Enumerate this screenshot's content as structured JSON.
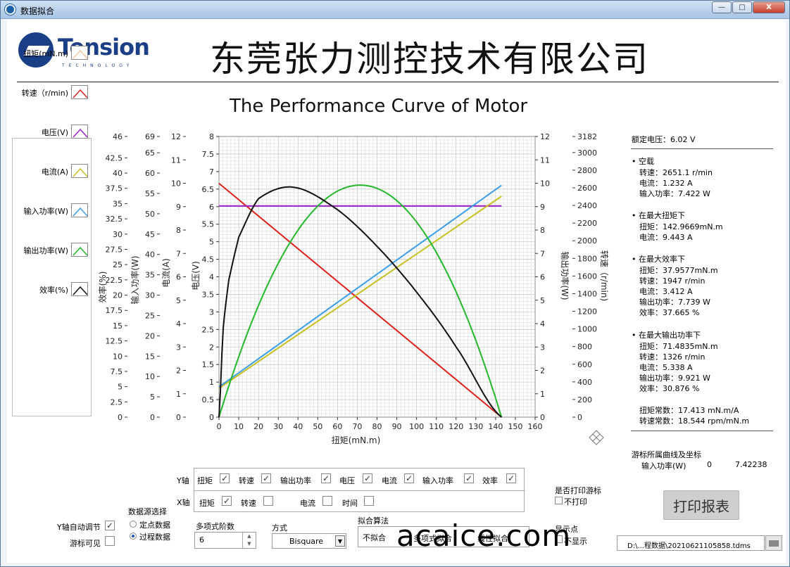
{
  "window": {
    "title": "数据拟合",
    "min": "—",
    "max": "□",
    "close": "X"
  },
  "header": {
    "logo_text": "Tension",
    "logo_sub": "TECHNOLOGY",
    "company": "东莞张力测控技术有限公司"
  },
  "colors": {
    "torque": "#f5c8a8",
    "speed": "#e0201a",
    "voltage": "#a020c8",
    "current": "#c8c020",
    "input_power": "#3a9ee8",
    "output_power": "#22b82a",
    "efficiency": "#111111"
  },
  "chart_data": {
    "type": "line",
    "title": "The Performance Curve of Motor",
    "xlabel": "扭矩(mN.m)",
    "xlim": [
      0,
      160
    ],
    "x_ticks": [
      "0",
      "10",
      "20",
      "30",
      "40",
      "50",
      "60",
      "70",
      "80",
      "90",
      "100",
      "110",
      "120",
      "130",
      "140",
      "150",
      "160"
    ],
    "axes": [
      {
        "name": "效率(%)",
        "side": "left",
        "lim": [
          0,
          46
        ],
        "ticks": [
          "46",
          "42.5",
          "40",
          "37.5",
          "35",
          "32.5",
          "30",
          "27.5",
          "25",
          "22.5",
          "20",
          "17.5",
          "15",
          "12.5",
          "10",
          "7.5",
          "5",
          "2.5",
          "0"
        ]
      },
      {
        "name": "输入功率(W)",
        "side": "left",
        "lim": [
          0,
          69
        ],
        "ticks": [
          "69",
          "65",
          "60",
          "55",
          "50",
          "45",
          "40",
          "35",
          "30",
          "25",
          "20",
          "15",
          "10",
          "5",
          "0"
        ]
      },
      {
        "name": "电流(A)",
        "side": "left",
        "lim": [
          0,
          12
        ],
        "ticks": [
          "12",
          "11",
          "10",
          "9",
          "8",
          "7",
          "6",
          "5",
          "4",
          "3",
          "2",
          "1",
          "0"
        ]
      },
      {
        "name": "电压(V)",
        "side": "left",
        "lim": [
          0,
          8
        ],
        "ticks": [
          "8",
          "7.5",
          "7",
          "6.5",
          "6",
          "5.5",
          "5",
          "4.5",
          "4",
          "3.5",
          "3",
          "2.5",
          "2",
          "1.5",
          "1",
          "0.5",
          "0"
        ]
      },
      {
        "name": "输出功率(W)",
        "side": "right",
        "lim": [
          0,
          12
        ],
        "ticks": [
          "12",
          "11",
          "10",
          "9",
          "8",
          "7",
          "6",
          "5",
          "4",
          "3",
          "2",
          "1",
          "0"
        ]
      },
      {
        "name": "转速（r/min)",
        "side": "right",
        "lim": [
          0,
          3182
        ],
        "ticks": [
          "3182",
          "3000",
          "2800",
          "2600",
          "2400",
          "2200",
          "2000",
          "1800",
          "1600",
          "1400",
          "1200",
          "1000",
          "800",
          "600",
          "400",
          "200",
          "0"
        ]
      }
    ],
    "series": [
      {
        "name": "转速（r/min)",
        "axis": "转速（r/min)",
        "x": [
          0,
          143
        ],
        "y": [
          2651.1,
          0
        ]
      },
      {
        "name": "电压(V)",
        "axis": "电压(V)",
        "x": [
          0,
          143
        ],
        "y": [
          6.02,
          6.02
        ]
      },
      {
        "name": "电流(A)",
        "axis": "电流(A)",
        "x": [
          0,
          143
        ],
        "y": [
          1.232,
          9.443
        ]
      },
      {
        "name": "输入功率(W)",
        "axis": "输入功率(W)",
        "x": [
          0,
          143
        ],
        "y": [
          7.42,
          57.0
        ]
      },
      {
        "name": "输出功率(W)",
        "axis": "输出功率(W)",
        "x": [
          0,
          71.48,
          143
        ],
        "y": [
          0,
          9.921,
          0
        ]
      },
      {
        "name": "效率(%)",
        "axis": "效率(%)",
        "x": [
          0,
          2,
          5,
          10,
          20,
          37.96,
          60,
          80,
          100,
          120,
          143
        ],
        "y": [
          0,
          14.0,
          22.5,
          29.5,
          35.8,
          37.665,
          34.0,
          28.0,
          20.5,
          11.5,
          0
        ]
      }
    ]
  },
  "legend": [
    {
      "label": "扭矩(mN.m)",
      "key": "torque"
    },
    {
      "label": "转速（r/min)",
      "key": "speed"
    },
    {
      "label": "电压(V)",
      "key": "voltage"
    },
    {
      "label": "电流(A)",
      "key": "current"
    },
    {
      "label": "输入功率(W)",
      "key": "input_power"
    },
    {
      "label": "输出功率(W)",
      "key": "output_power"
    },
    {
      "label": "效率(%)",
      "key": "efficiency"
    }
  ],
  "info": {
    "rated_voltage": "额定电压：6.02 V",
    "no_load": {
      "head": "• 空载",
      "l1": "转速：2651.1 r/min",
      "l2": "电流：1.232 A",
      "l3": "输入功率：7.422 W"
    },
    "max_torque": {
      "head": "• 在最大扭矩下",
      "l1": "扭矩：142.9669mN.m",
      "l2": "电流：9.443 A"
    },
    "max_eff": {
      "head": "• 在最大效率下",
      "l1": "扭矩：37.9577mN.m",
      "l2": "转速：1947  r/min",
      "l3": "电流：3.412 A",
      "l4": "输出功率：7.739 W",
      "l5": "效率：37.665 %"
    },
    "max_out": {
      "head": "• 在最大输出功率下",
      "l1": "扭矩：71.4835mN.m",
      "l2": "转速：1326  r/min",
      "l3": "电流：5.338 A",
      "l4": "输出功率：9.921 W",
      "l5": "效率：30.876 %"
    },
    "kt": "扭矩常数：17.413 mN.m/A",
    "kn": "转速常数：18.544 rpm/mN.m"
  },
  "cursor": {
    "title": "游标所属曲线及坐标",
    "curve": "输入功率(W)",
    "x": "0",
    "y": "7.42238"
  },
  "axis_select": {
    "y_label": "Y轴",
    "x_label": "X轴",
    "y_items": [
      {
        "label": "扭矩",
        "checked": "✓"
      },
      {
        "label": "转速",
        "checked": "✓"
      },
      {
        "label": "输出功率",
        "checked": "✓"
      },
      {
        "label": "电压",
        "checked": "✓"
      },
      {
        "label": "电流",
        "checked": "✓"
      },
      {
        "label": "输入功率",
        "checked": "✓"
      },
      {
        "label": "效率",
        "checked": "✓"
      }
    ],
    "x_items": [
      {
        "label": "扭矩",
        "checked": "✓"
      },
      {
        "label": "转速",
        "checked": ""
      },
      {
        "label": "电流",
        "checked": ""
      },
      {
        "label": "时间",
        "checked": ""
      }
    ]
  },
  "controls": {
    "y_auto": "Y轴自动调节",
    "y_auto_checked": "✓",
    "cursor_visible": "游标可见",
    "cursor_visible_checked": "",
    "source_title": "数据源选择",
    "source_opt1": "定点数据",
    "source_opt2": "过程数据",
    "poly_label": "多项式阶数",
    "poly_value": "6",
    "method_label": "方式",
    "method_value": "Bisquare",
    "algo_label": "拟合算法",
    "algo_opt1": "不拟合",
    "algo_opt2": "多项式拟合",
    "algo_opt3": "线性拟合",
    "print_cursor_label": "是否打印游标",
    "print_cursor_opt": "不打印",
    "show_points_label": "显示点",
    "show_points_opt": "不显示",
    "print_button": "打印报表",
    "file_path": "D:\\...程数据\\20210621105858.tdms"
  },
  "watermark": "acaice.com"
}
